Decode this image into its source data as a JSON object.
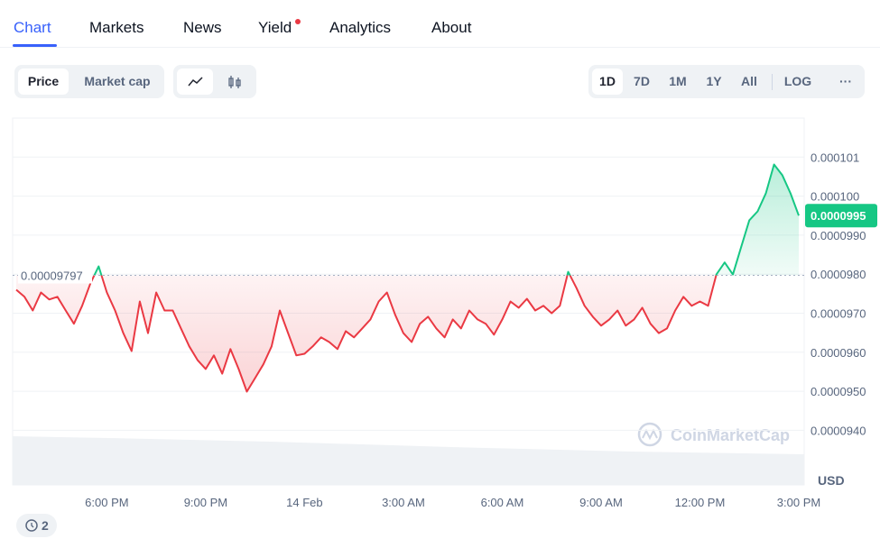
{
  "tabs": [
    "Chart",
    "Markets",
    "News",
    "Yield",
    "Analytics",
    "About"
  ],
  "price_toggle": [
    "Price",
    "Market cap"
  ],
  "ranges": [
    "1D",
    "7D",
    "1M",
    "1Y",
    "All"
  ],
  "scale_toggle": "LOG",
  "more": "···",
  "history_count": 2,
  "chart_data": {
    "type": "line",
    "categories": [
      null,
      null,
      null,
      null,
      null,
      null,
      null,
      null,
      null,
      null,
      null,
      "6:00 PM",
      null,
      null,
      null,
      null,
      null,
      null,
      null,
      null,
      null,
      null,
      null,
      "9:00 PM",
      null,
      null,
      null,
      null,
      null,
      null,
      null,
      null,
      null,
      null,
      null,
      "14 Feb",
      null,
      null,
      null,
      null,
      null,
      null,
      null,
      null,
      null,
      null,
      null,
      "3:00 AM",
      null,
      null,
      null,
      null,
      null,
      null,
      null,
      null,
      null,
      null,
      null,
      "6:00 AM",
      null,
      null,
      null,
      null,
      null,
      null,
      null,
      null,
      null,
      null,
      null,
      "9:00 AM",
      null,
      null,
      null,
      null,
      null,
      null,
      null,
      null,
      null,
      null,
      null,
      "12:00 PM",
      null,
      null,
      null,
      null,
      null,
      null,
      null,
      null,
      null,
      null,
      null,
      "3:00 PM"
    ],
    "values": [
      9.76e-05,
      9.742e-05,
      9.707e-05,
      9.753e-05,
      9.735e-05,
      9.742e-05,
      9.707e-05,
      9.673e-05,
      9.719e-05,
      9.776e-05,
      9.82e-05,
      9.753e-05,
      9.707e-05,
      9.649e-05,
      9.603e-05,
      9.73e-05,
      9.649e-05,
      9.753e-05,
      9.707e-05,
      9.707e-05,
      9.661e-05,
      9.615e-05,
      9.58e-05,
      9.557e-05,
      9.592e-05,
      9.545e-05,
      9.608e-05,
      9.557e-05,
      9.499e-05,
      9.534e-05,
      9.569e-05,
      9.615e-05,
      9.707e-05,
      9.649e-05,
      9.592e-05,
      9.596e-05,
      9.615e-05,
      9.638e-05,
      9.626e-05,
      9.608e-05,
      9.654e-05,
      9.638e-05,
      9.661e-05,
      9.684e-05,
      9.73e-05,
      9.753e-05,
      9.696e-05,
      9.649e-05,
      9.626e-05,
      9.673e-05,
      9.691e-05,
      9.661e-05,
      9.638e-05,
      9.684e-05,
      9.661e-05,
      9.707e-05,
      9.684e-05,
      9.673e-05,
      9.645e-05,
      9.684e-05,
      9.73e-05,
      9.714e-05,
      9.737e-05,
      9.707e-05,
      9.719e-05,
      9.7e-05,
      9.719e-05,
      9.806e-05,
      9.765e-05,
      9.719e-05,
      9.691e-05,
      9.668e-05,
      9.684e-05,
      9.707e-05,
      9.668e-05,
      9.684e-05,
      9.714e-05,
      9.673e-05,
      9.649e-05,
      9.661e-05,
      9.707e-05,
      9.742e-05,
      9.719e-05,
      9.73e-05,
      9.719e-05,
      9.799e-05,
      9.83e-05,
      9.799e-05,
      9.869e-05,
      9.938e-05,
      9.961e-05,
      0.00010007,
      0.00010081,
      0.00010054,
      0.00010007,
      9.95e-05
    ],
    "color_up": "#16c784",
    "color_down": "#ea3943",
    "baseline": 9.797e-05,
    "current_price": 9.95e-05,
    "ylim": [
      9.26e-05,
      0.000102
    ],
    "yticks": [
      {
        "value": 9.4e-05,
        "label": "0.0000940"
      },
      {
        "value": 9.5e-05,
        "label": "0.0000950"
      },
      {
        "value": 9.6e-05,
        "label": "0.0000960"
      },
      {
        "value": 9.7e-05,
        "label": "0.0000970"
      },
      {
        "value": 9.8e-05,
        "label": "0.0000980"
      },
      {
        "value": 9.9e-05,
        "label": "0.0000990"
      },
      {
        "value": 0.0001,
        "label": "0.000100"
      },
      {
        "value": 0.000101,
        "label": "0.000101"
      }
    ],
    "y_unit": "USD",
    "watermark": "CoinMarketCap",
    "grid": true
  }
}
